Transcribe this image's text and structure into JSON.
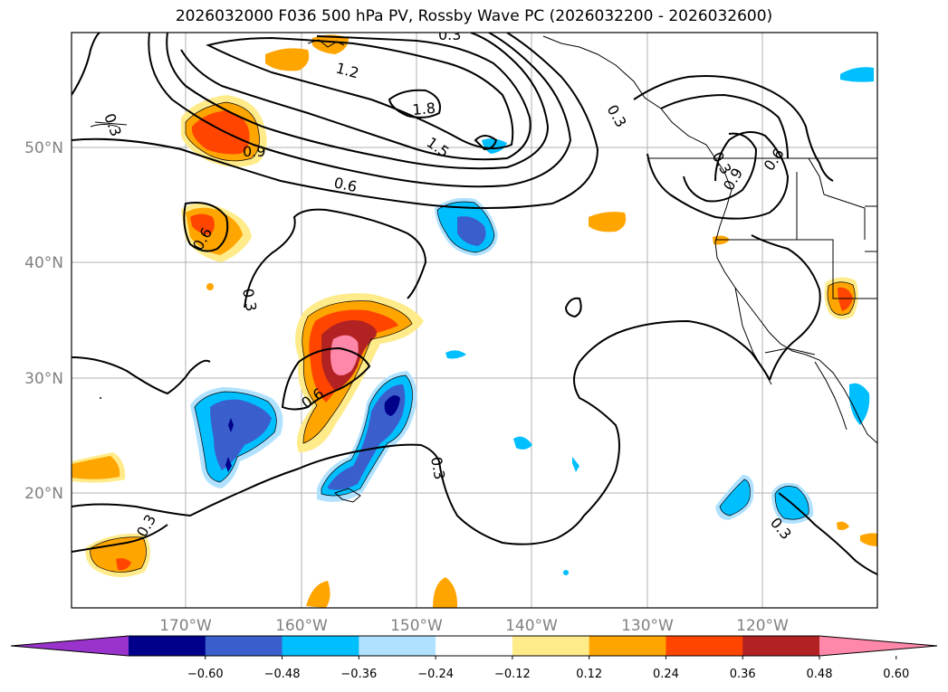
{
  "title": "2026032000 F036 500 hPa PV, Rossby Wave PC (2026032200 - 2026032600)",
  "lat_labels": [
    "50°N",
    "40°N",
    "30°N",
    "20°N"
  ],
  "lon_labels": [
    "170°W",
    "160°W",
    "150°W",
    "140°W",
    "130°W",
    "120°W"
  ],
  "colorbar": {
    "ticks": [
      "−0.60",
      "−0.48",
      "−0.36",
      "−0.24",
      "−0.12",
      "0.12",
      "0.24",
      "0.36",
      "0.48",
      "0.60"
    ],
    "colors": [
      "#9933cc",
      "#00008b",
      "#3a5fcd",
      "#00bfff",
      "#b0e2ff",
      "#ffffff",
      "#ffeb8a",
      "#ffa500",
      "#ff4500",
      "#b22222",
      "#ff88aa"
    ]
  },
  "contour_labels": [
    "0.3",
    "0.3",
    "1.2",
    "1.8",
    "1.5",
    "0.9",
    "0.6",
    "0.6",
    "0.3",
    "0.6",
    "0.3",
    "0.3",
    "0.3",
    "0.3",
    "0.9",
    "0.6",
    "0.3"
  ],
  "palette": {
    "neg_light": "#b0e2ff",
    "neg_mid": "#00bfff",
    "neg_strong": "#3a5fcd",
    "neg_max": "#00008b",
    "pos_light": "#ffeb8a",
    "pos_mid": "#ffa500",
    "pos_strong": "#ff4500",
    "pos_max": "#b22222",
    "pos_peak": "#ff88aa"
  }
}
